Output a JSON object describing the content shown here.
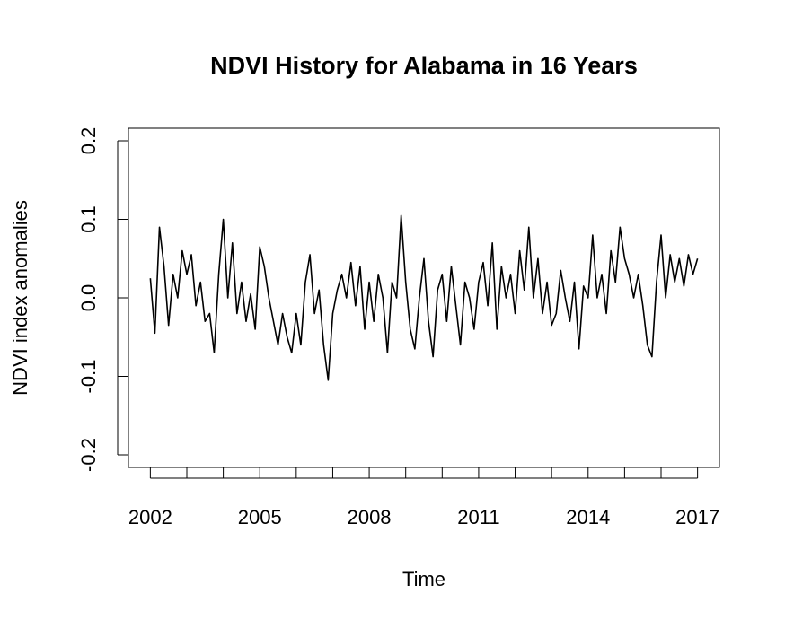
{
  "chart_data": {
    "type": "line",
    "title": "NDVI History for Alabama in 16 Years",
    "x_label": "Time",
    "y_label": "NDVI index anomalies",
    "xlim": [
      2001.4,
      2017.6
    ],
    "ylim": [
      -0.216,
      0.216
    ],
    "xticks": [
      2002,
      {
        "value": 2003,
        "label": null
      },
      {
        "value": 2004,
        "label": null
      },
      2005,
      {
        "value": 2006,
        "label": null
      },
      {
        "value": 2007,
        "label": null
      },
      2008,
      {
        "value": 2009,
        "label": null
      },
      {
        "value": 2010,
        "label": null
      },
      2011,
      {
        "value": 2012,
        "label": null
      },
      {
        "value": 2013,
        "label": null
      },
      2014,
      {
        "value": 2015,
        "label": null
      },
      {
        "value": 2016,
        "label": null
      },
      2017
    ],
    "yticks": [
      {
        "value": -0.2,
        "label": "-0.2"
      },
      {
        "value": -0.1,
        "label": "-0.1"
      },
      {
        "value": 0,
        "label": "0.0"
      },
      0.1,
      0.2
    ],
    "x": [
      2002,
      2002.125,
      2002.25,
      2002.375,
      2002.5,
      2002.625,
      2002.75,
      2002.875,
      2003,
      2003.125,
      2003.25,
      2003.375,
      2003.5,
      2003.625,
      2003.75,
      2003.875,
      2004,
      2004.125,
      2004.25,
      2004.375,
      2004.5,
      2004.625,
      2004.75,
      2004.875,
      2005,
      2005.125,
      2005.25,
      2005.375,
      2005.5,
      2005.625,
      2005.75,
      2005.875,
      2006,
      2006.125,
      2006.25,
      2006.375,
      2006.5,
      2006.625,
      2006.75,
      2006.875,
      2007,
      2007.125,
      2007.25,
      2007.375,
      2007.5,
      2007.625,
      2007.75,
      2007.875,
      2008,
      2008.125,
      2008.25,
      2008.375,
      2008.5,
      2008.625,
      2008.75,
      2008.875,
      2009,
      2009.125,
      2009.25,
      2009.375,
      2009.5,
      2009.625,
      2009.75,
      2009.875,
      2010,
      2010.125,
      2010.25,
      2010.375,
      2010.5,
      2010.625,
      2010.75,
      2010.875,
      2011,
      2011.125,
      2011.25,
      2011.375,
      2011.5,
      2011.625,
      2011.75,
      2011.875,
      2012,
      2012.125,
      2012.25,
      2012.375,
      2012.5,
      2012.625,
      2012.75,
      2012.875,
      2013,
      2013.125,
      2013.25,
      2013.375,
      2013.5,
      2013.625,
      2013.75,
      2013.875,
      2014,
      2014.125,
      2014.25,
      2014.375,
      2014.5,
      2014.625,
      2014.75,
      2014.875,
      2015,
      2015.125,
      2015.25,
      2015.375,
      2015.5,
      2015.625,
      2015.75,
      2015.875,
      2016,
      2016.125,
      2016.25,
      2016.375,
      2016.5,
      2016.625,
      2016.75,
      2016.875,
      2017
    ],
    "values": [
      0.025,
      -0.045,
      0.09,
      0.04,
      -0.035,
      0.03,
      0.0,
      0.06,
      0.03,
      0.055,
      -0.01,
      0.02,
      -0.03,
      -0.02,
      -0.07,
      0.03,
      0.1,
      0.0,
      0.07,
      -0.02,
      0.02,
      -0.03,
      0.005,
      -0.04,
      0.065,
      0.04,
      0.0,
      -0.03,
      -0.06,
      -0.02,
      -0.05,
      -0.07,
      -0.02,
      -0.06,
      0.02,
      0.055,
      -0.02,
      0.01,
      -0.06,
      -0.105,
      -0.02,
      0.01,
      0.03,
      0.0,
      0.045,
      -0.01,
      0.04,
      -0.04,
      0.02,
      -0.03,
      0.03,
      0.0,
      -0.07,
      0.02,
      0.0,
      0.105,
      0.02,
      -0.04,
      -0.065,
      0.0,
      0.05,
      -0.03,
      -0.075,
      0.01,
      0.03,
      -0.03,
      0.04,
      -0.01,
      -0.06,
      0.02,
      0.0,
      -0.04,
      0.02,
      0.045,
      -0.01,
      0.07,
      -0.04,
      0.04,
      0.0,
      0.03,
      -0.02,
      0.06,
      0.01,
      0.09,
      0.0,
      0.05,
      -0.02,
      0.02,
      -0.035,
      -0.02,
      0.035,
      0.0,
      -0.03,
      0.02,
      -0.065,
      0.015,
      0.0,
      0.08,
      0.0,
      0.03,
      -0.02,
      0.06,
      0.02,
      0.09,
      0.05,
      0.03,
      0.0,
      0.03,
      -0.01,
      -0.06,
      -0.075,
      0.02,
      0.08,
      0.0,
      0.055,
      0.02,
      0.05,
      0.015,
      0.055,
      0.03,
      0.05
    ],
    "color": "#000000"
  }
}
